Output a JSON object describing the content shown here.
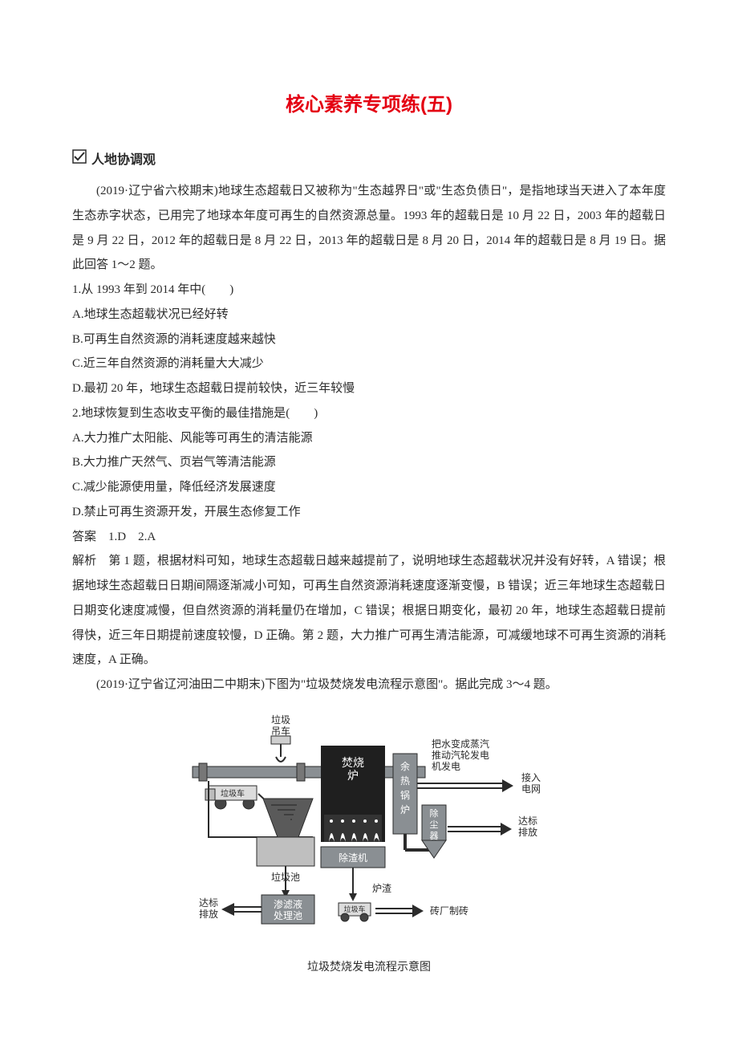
{
  "title": "核心素养专项练(五)",
  "section_head": "人地协调观",
  "passage1": {
    "intro": "(2019·辽宁省六校期末)地球生态超载日又被称为\"生态越界日\"或\"生态负债日\"，是指地球当天进入了本年度生态赤字状态，已用完了地球本年度可再生的自然资源总量。1993 年的超载日是 10 月 22 日，2003 年的超载日是 9 月 22 日，2012 年的超载日是 8 月 22 日，2013 年的超载日是 8 月 20 日，2014 年的超载日是 8 月 19 日。据此回答 1～2 题。",
    "q1": {
      "stem": "1.从 1993 年到 2014 年中(　　)",
      "A": "A.地球生态超载状况已经好转",
      "B": "B.可再生自然资源的消耗速度越来越快",
      "C": "C.近三年自然资源的消耗量大大减少",
      "D": "D.最初 20 年，地球生态超载日提前较快，近三年较慢"
    },
    "q2": {
      "stem": "2.地球恢复到生态收支平衡的最佳措施是(　　)",
      "A": "A.大力推广太阳能、风能等可再生的清洁能源",
      "B": "B.大力推广天然气、页岩气等清洁能源",
      "C": "C.减少能源使用量，降低经济发展速度",
      "D": "D.禁止可再生资源开发，开展生态修复工作"
    },
    "answer": "答案　1.D　2.A",
    "analysis": "解析　第 1 题，根据材料可知，地球生态超载日越来越提前了，说明地球生态超载状况并没有好转，A 错误；根据地球生态超载日日期间隔逐渐减小可知，可再生自然资源消耗速度逐渐变慢，B 错误；近三年地球生态超载日日期变化速度减慢，但自然资源的消耗量仍在增加，C 错误；根据日期变化，最初 20 年，地球生态超载日提前得快，近三年日期提前速度较慢，D 正确。第 2 题，大力推广可再生清洁能源，可减缓地球不可再生资源的消耗速度，A 正确。"
  },
  "passage2": {
    "intro": "(2019·辽宁省辽河油田二中期末)下图为\"垃圾焚烧发电流程示意图\"。据此完成 3～4 题。",
    "caption": "垃圾焚烧发电流程示意图"
  },
  "diagram": {
    "labels": {
      "crane": "垃圾\n吊车",
      "furnace": "焚烧\n炉",
      "boiler": "余热锅炉",
      "boiler_desc": "把水变成蒸汽\n推动汽轮发电\n机发电",
      "grid": "接入\n电网",
      "duster": "除尘器",
      "emit_std": "达标\n排放",
      "pit": "垃圾池",
      "deslag": "除渣机",
      "leachate": "渗滤液\n处理池",
      "slag": "炉渣",
      "truck_small": "垃圾车",
      "brick": "砖厂制砖",
      "emit_left": "达标\n排放",
      "truck_label": "垃圾车"
    },
    "colors": {
      "furnace_fill": "#1f1f1f",
      "furnace_flame": "#ffffff",
      "boiler_fill": "#8a8f93",
      "duster_fill": "#8a8f93",
      "pipe_fill": "#8a8f93",
      "pit_fill": "#bfbfbf",
      "deslag_fill": "#8a8f93",
      "leachate_fill": "#8a8f93",
      "arrow": "#2b2b2b",
      "outline": "#2b2b2b",
      "funnel": "#5a5a5a"
    },
    "fontsize": 12
  }
}
